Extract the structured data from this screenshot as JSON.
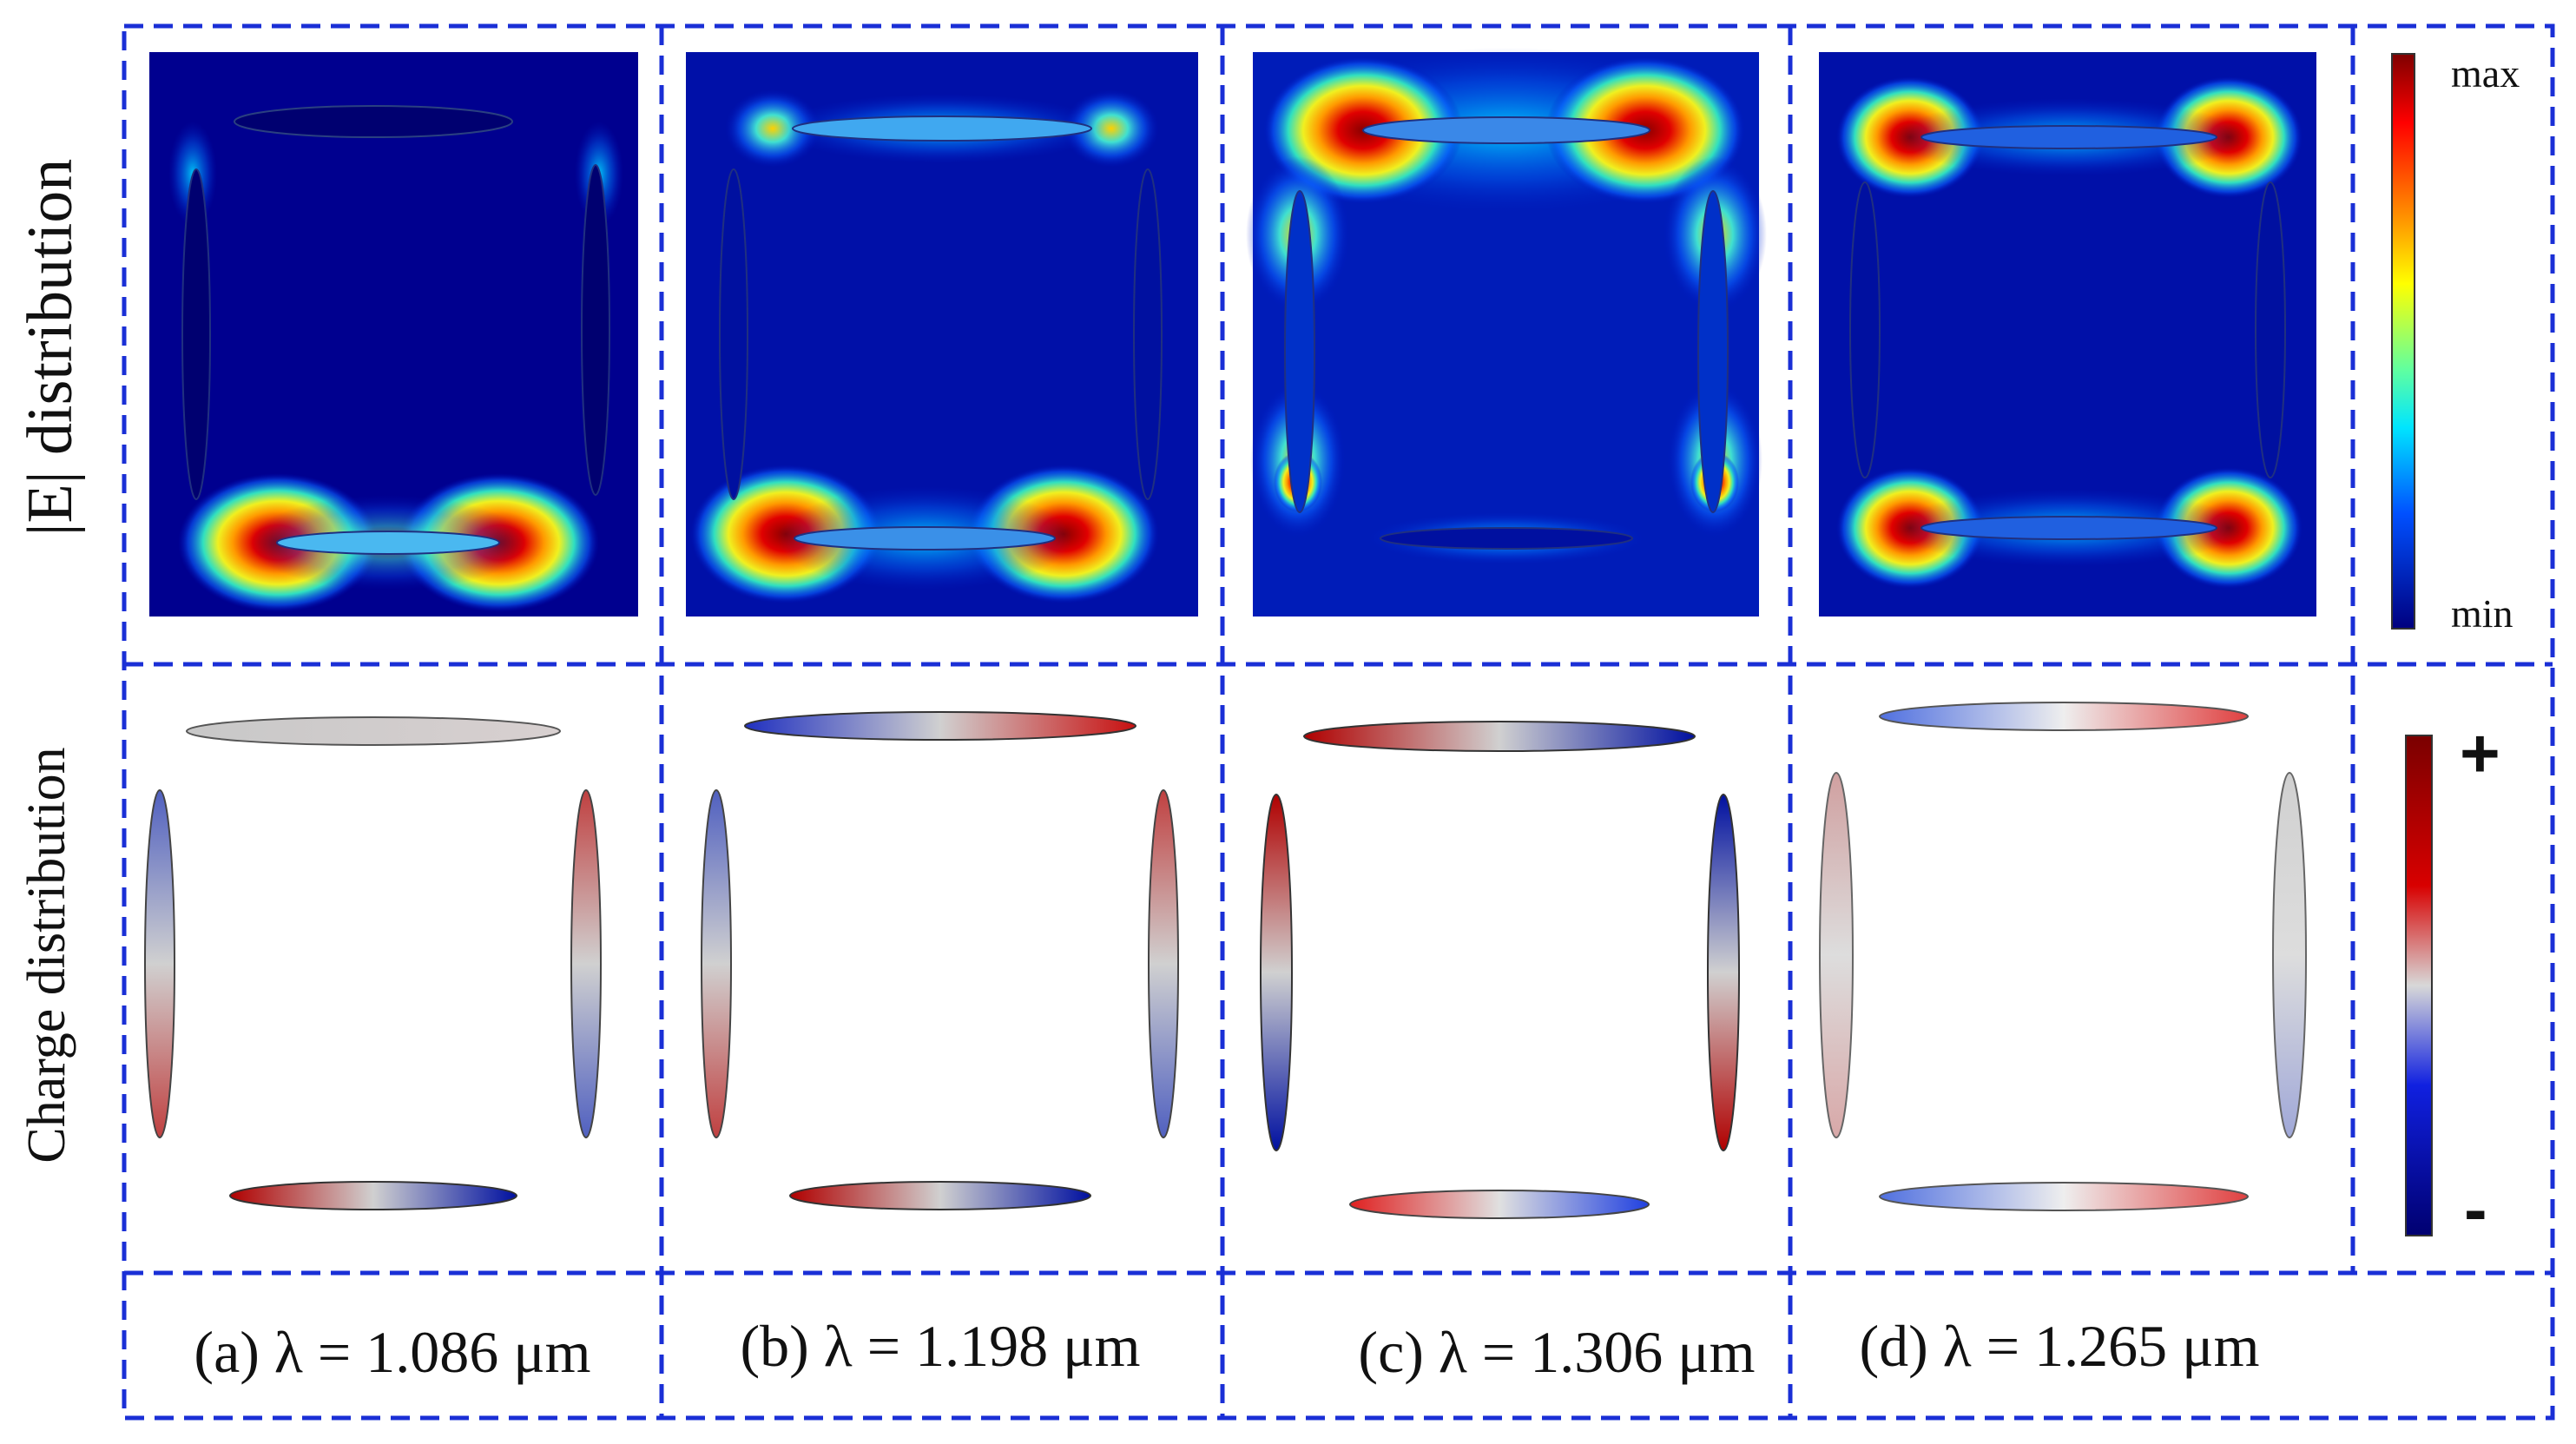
{
  "row_labels": {
    "field": "|E| distribution",
    "charge": "Charge distribution"
  },
  "panels": [
    {
      "id": "a",
      "caption": "(a) λ = 1.086 μm"
    },
    {
      "id": "b",
      "caption": "(b) λ = 1.198 μm"
    },
    {
      "id": "c",
      "caption": "(c) λ = 1.306 μm"
    },
    {
      "id": "d",
      "caption": "(d) λ = 1.265 μm"
    }
  ],
  "colorbar_field": {
    "max_label": "max",
    "min_label": "min"
  },
  "colorbar_charge": {
    "plus_label": "+",
    "minus_label": "-"
  },
  "colors": {
    "frame": "#1a2fd6",
    "field_background": "#00008f",
    "hot": "#a10000",
    "positive": "#c40000",
    "negative": "#0019b8",
    "neutral": "#cfcfcf"
  }
}
